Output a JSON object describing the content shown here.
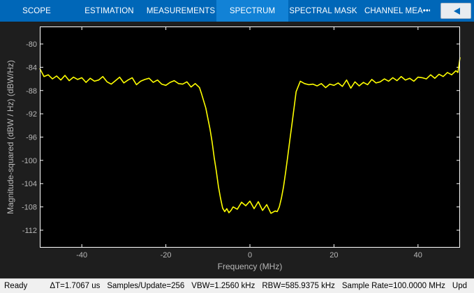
{
  "toolstrip": {
    "tabs": [
      {
        "label": "SCOPE",
        "active": false
      },
      {
        "label": "ESTIMATION",
        "active": false
      },
      {
        "label": "MEASUREMENTS",
        "active": false
      },
      {
        "label": "SPECTRUM",
        "active": true
      },
      {
        "label": "SPECTRAL MASK",
        "active": false
      },
      {
        "label": "CHANNEL MEA•••",
        "active": false
      }
    ],
    "collapse_icon": "chevron-left-icon"
  },
  "status": {
    "ready": "Ready",
    "fields": [
      "ΔT=1.7067 us",
      "Samples/Update=256",
      "VBW=1.2560 kHz",
      "RBW=585.9375 kHz",
      "Sample Rate=100.0000 MHz",
      "Upd"
    ]
  },
  "colors": {
    "toolstrip": "#0067b8",
    "active_tab": "#1282d6",
    "axes_bg": "#000000",
    "trace": "#ffff00",
    "frame": "#ffffff",
    "label": "#b8b8b8"
  },
  "chart_data": {
    "type": "line",
    "xlabel": "Frequency (MHz)",
    "ylabel": "Magnitude-squared (dBW / Hz) (dBW/Hz)",
    "xlim": [
      -50,
      50
    ],
    "ylim": [
      -115,
      -77
    ],
    "xticks": [
      -40,
      -20,
      0,
      20,
      40
    ],
    "yticks": [
      -80,
      -84,
      -88,
      -92,
      -96,
      -100,
      -104,
      -108,
      -112
    ],
    "grid": false,
    "series": [
      {
        "color": "#ffff00",
        "x": [
          -50,
          -49,
          -48,
          -47,
          -46,
          -45,
          -44,
          -43,
          -42,
          -41,
          -40,
          -39,
          -38,
          -37,
          -36,
          -35,
          -34,
          -33,
          -32,
          -31,
          -30,
          -29,
          -28,
          -27,
          -26,
          -25,
          -24,
          -23,
          -22,
          -21,
          -20,
          -19,
          -18,
          -17,
          -16,
          -15,
          -14,
          -13,
          -12,
          -11.5,
          -11,
          -10.5,
          -10,
          -9.5,
          -9,
          -8.5,
          -8,
          -7.5,
          -7,
          -6.5,
          -6,
          -5.5,
          -5,
          -4.5,
          -4,
          -3,
          -2,
          -1,
          0,
          1,
          2,
          3,
          4,
          5,
          6,
          6.5,
          7,
          7.5,
          8,
          8.5,
          9,
          9.5,
          10,
          10.5,
          11,
          12,
          13,
          14,
          15,
          16,
          17,
          18,
          19,
          20,
          21,
          22,
          23,
          24,
          25,
          26,
          27,
          28,
          29,
          30,
          31,
          32,
          33,
          34,
          35,
          36,
          37,
          38,
          39,
          40,
          41,
          42,
          43,
          44,
          45,
          46,
          47,
          48,
          49,
          49.5,
          50
        ],
        "y": [
          -84.2,
          -85.6,
          -85.3,
          -86.0,
          -85.5,
          -86.2,
          -85.4,
          -86.3,
          -85.7,
          -86.1,
          -85.8,
          -86.6,
          -85.9,
          -86.4,
          -86.2,
          -85.6,
          -86.5,
          -86.9,
          -86.3,
          -85.7,
          -86.7,
          -86.2,
          -85.8,
          -87.0,
          -86.4,
          -86.1,
          -85.9,
          -86.6,
          -86.2,
          -86.9,
          -87.1,
          -86.6,
          -86.3,
          -86.8,
          -86.9,
          -86.5,
          -87.4,
          -86.8,
          -87.5,
          -88.6,
          -89.8,
          -91.0,
          -92.8,
          -94.6,
          -96.8,
          -99.5,
          -101.8,
          -104.5,
          -106.5,
          -108.2,
          -108.8,
          -108.3,
          -109.0,
          -108.6,
          -108.0,
          -108.4,
          -107.2,
          -107.8,
          -107.0,
          -108.3,
          -107.1,
          -108.6,
          -107.6,
          -109.1,
          -108.7,
          -108.8,
          -108.0,
          -106.5,
          -104.5,
          -102.0,
          -99.3,
          -96.5,
          -93.8,
          -91.0,
          -88.2,
          -86.4,
          -86.8,
          -87.0,
          -86.9,
          -87.2,
          -86.8,
          -87.5,
          -86.9,
          -87.1,
          -86.7,
          -87.3,
          -86.2,
          -87.6,
          -86.5,
          -87.2,
          -86.6,
          -87.0,
          -86.1,
          -86.7,
          -86.5,
          -86.0,
          -86.4,
          -85.8,
          -86.3,
          -85.6,
          -86.2,
          -85.9,
          -86.4,
          -85.7,
          -85.8,
          -86.0,
          -85.3,
          -85.9,
          -85.2,
          -85.6,
          -84.9,
          -85.3,
          -84.6,
          -84.9,
          -82.3
        ]
      }
    ]
  }
}
